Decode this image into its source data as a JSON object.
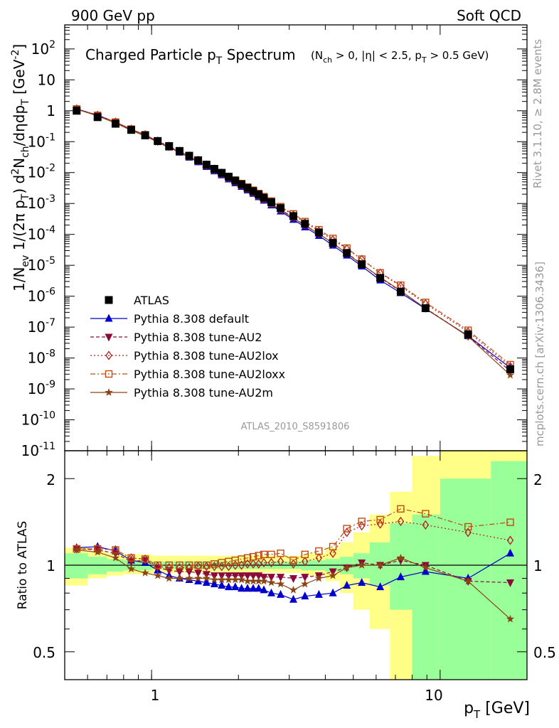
{
  "header": {
    "left": "900 GeV pp",
    "right": "Soft QCD"
  },
  "plot_title": {
    "main": "Charged Particle p",
    "main_sub": "T",
    "main_tail": " Spectrum",
    "cuts": "(N",
    "cuts_sub1": "ch",
    "cuts_mid": " > 0, |η| < 2.5, p",
    "cuts_sub2": "T",
    "cuts_tail": " > 0.5 GeV)"
  },
  "side_text": {
    "rivet": "Rivet 3.1.10, ≥ 2.8M events",
    "mcplots": "mcplots.cern.ch [arXiv:1306.3436]"
  },
  "analysis_id": "ATLAS_2010_S8591806",
  "ylabel_main": "1/N",
  "ylabel_ratio": "Ratio to ATLAS",
  "xlabel": "p",
  "xlabel_sub": "T",
  "xlabel_unit": " [GeV]",
  "legend": [
    "ATLAS",
    "Pythia 8.308 default",
    "Pythia 8.308 tune-AU2",
    "Pythia 8.308 tune-AU2lox",
    "Pythia 8.308 tune-AU2loxx",
    "Pythia 8.308 tune-AU2m"
  ],
  "colors": {
    "data": "#000000",
    "default": "#0000cc",
    "au2": "#8b0a3c",
    "au2lox": "#b02020",
    "au2loxx": "#c04a10",
    "au2m": "#8b4513",
    "band_inner": "#99ff99",
    "band_outer": "#ffff88",
    "annotation": "#999999"
  },
  "chart_data": [
    {
      "type": "line",
      "panel": "main",
      "xscale": "log",
      "yscale": "log",
      "xlim": [
        0.5,
        20
      ],
      "ylim": [
        1e-11,
        600
      ],
      "x": [
        0.55,
        0.65,
        0.75,
        0.85,
        0.95,
        1.05,
        1.15,
        1.25,
        1.35,
        1.45,
        1.55,
        1.65,
        1.75,
        1.85,
        1.95,
        2.05,
        2.15,
        2.25,
        2.35,
        2.45,
        2.6,
        2.8,
        3.1,
        3.4,
        3.8,
        4.25,
        4.75,
        5.35,
        6.2,
        7.3,
        8.9,
        12.5,
        17.5
      ],
      "series": [
        {
          "name": "ATLAS",
          "style": "square",
          "values": [
            1.0,
            0.62,
            0.38,
            0.24,
            0.16,
            0.105,
            0.072,
            0.05,
            0.035,
            0.025,
            0.018,
            0.0132,
            0.0098,
            0.0073,
            0.0055,
            0.0042,
            0.0032,
            0.0025,
            0.00195,
            0.00153,
            0.0011,
            0.00071,
            0.00039,
            0.00022,
            0.000115,
            5.3e-05,
            2.5e-05,
            1.08e-05,
            3.9e-06,
            1.4e-06,
            4.1e-07,
            5.8e-08,
            4.3e-09
          ]
        },
        {
          "name": "Pythia 8.308 default",
          "style": "triangle-up",
          "values": [
            1.15,
            0.72,
            0.43,
            0.25,
            0.165,
            0.1,
            0.066,
            0.045,
            0.031,
            0.022,
            0.0155,
            0.0112,
            0.0083,
            0.0061,
            0.0046,
            0.0035,
            0.0027,
            0.0021,
            0.00163,
            0.00126,
            0.00088,
            0.00056,
            0.0003,
            0.000172,
            9.1e-05,
            4.4e-05,
            2.1e-05,
            9.3e-06,
            3.3e-06,
            1.28e-06,
            3.9e-07,
            5.2e-08,
            4.8e-09
          ]
        },
        {
          "name": "Pythia 8.308 tune-AU2",
          "style": "triangle-down",
          "values": [
            1.14,
            0.7,
            0.42,
            0.248,
            0.166,
            0.103,
            0.069,
            0.048,
            0.033,
            0.0235,
            0.0166,
            0.0121,
            0.009,
            0.0067,
            0.0051,
            0.0038,
            0.0029,
            0.00228,
            0.00177,
            0.00138,
            0.00097,
            0.00063,
            0.00035,
            0.000198,
            0.000106,
            5.1e-05,
            2.5e-05,
            1.1e-05,
            3.9e-06,
            1.45e-06,
            4.1e-07,
            5.1e-08,
            3.8e-09
          ]
        },
        {
          "name": "Pythia 8.308 tune-AU2lox",
          "style": "diamond",
          "values": [
            1.14,
            0.71,
            0.43,
            0.255,
            0.168,
            0.104,
            0.071,
            0.049,
            0.0345,
            0.0247,
            0.0176,
            0.0129,
            0.0096,
            0.0072,
            0.0055,
            0.0042,
            0.0032,
            0.00253,
            0.00197,
            0.00155,
            0.00111,
            0.00073,
            0.00042,
            0.00024,
            0.000129,
            6.6e-05,
            3.4e-05,
            1.55e-05,
            5.6e-06,
            2.1e-06,
            5.7e-07,
            7e-08,
            5.3e-09
          ]
        },
        {
          "name": "Pythia 8.308 tune-AU2loxx",
          "style": "square-open",
          "values": [
            1.14,
            0.71,
            0.43,
            0.255,
            0.168,
            0.105,
            0.072,
            0.05,
            0.035,
            0.025,
            0.018,
            0.0133,
            0.0099,
            0.0075,
            0.0057,
            0.0044,
            0.0034,
            0.00268,
            0.0021,
            0.00166,
            0.0012,
            0.00079,
            0.00046,
            0.00026,
            0.000142,
            7.4e-05,
            3.6e-05,
            1.58e-05,
            5.7e-06,
            2.27e-06,
            6.3e-07,
            7.9e-08,
            6.1e-09
          ]
        },
        {
          "name": "Pythia 8.308 tune-AU2m",
          "style": "star",
          "values": [
            1.13,
            0.68,
            0.4,
            0.232,
            0.152,
            0.096,
            0.064,
            0.045,
            0.0315,
            0.0225,
            0.016,
            0.0117,
            0.0087,
            0.0065,
            0.0049,
            0.0037,
            0.0028,
            0.00219,
            0.00168,
            0.00131,
            0.00093,
            0.0006,
            0.00034,
            0.000194,
            0.000104,
            5.2e-05,
            2.4e-05,
            1.07e-05,
            4.1e-06,
            1.5e-06,
            4e-07,
            5e-08,
            2.8e-09
          ]
        }
      ]
    },
    {
      "type": "line",
      "panel": "ratio",
      "xscale": "log",
      "yscale": "log",
      "xlim": [
        0.5,
        20
      ],
      "ylim": [
        0.4,
        2.5
      ],
      "ylabel": "Ratio to ATLAS",
      "reference_line": 1,
      "x": [
        0.55,
        0.65,
        0.75,
        0.85,
        0.95,
        1.05,
        1.15,
        1.25,
        1.35,
        1.45,
        1.55,
        1.65,
        1.75,
        1.85,
        1.95,
        2.05,
        2.15,
        2.25,
        2.35,
        2.45,
        2.6,
        2.8,
        3.1,
        3.4,
        3.8,
        4.25,
        4.75,
        5.35,
        6.2,
        7.3,
        8.9,
        12.5,
        17.5
      ],
      "series": [
        {
          "name": "Pythia 8.308 default",
          "values": [
            1.15,
            1.16,
            1.12,
            1.04,
            1.02,
            0.96,
            0.92,
            0.9,
            0.89,
            0.88,
            0.87,
            0.86,
            0.85,
            0.84,
            0.84,
            0.83,
            0.83,
            0.83,
            0.83,
            0.82,
            0.8,
            0.79,
            0.76,
            0.78,
            0.79,
            0.8,
            0.85,
            0.87,
            0.84,
            0.91,
            0.95,
            0.9,
            1.1
          ]
        },
        {
          "name": "Pythia 8.308 tune-AU2",
          "values": [
            1.14,
            1.13,
            1.1,
            1.03,
            1.04,
            0.98,
            0.96,
            0.95,
            0.95,
            0.94,
            0.93,
            0.92,
            0.92,
            0.92,
            0.92,
            0.92,
            0.92,
            0.92,
            0.92,
            0.91,
            0.91,
            0.91,
            0.9,
            0.91,
            0.92,
            0.95,
            0.98,
            1.02,
            1.0,
            1.04,
            1.0,
            0.88,
            0.87
          ]
        },
        {
          "name": "Pythia 8.308 tune-AU2lox",
          "values": [
            1.14,
            1.14,
            1.13,
            1.06,
            1.05,
            0.99,
            0.98,
            0.98,
            0.98,
            0.99,
            0.99,
            0.99,
            0.99,
            0.99,
            1.0,
            1.0,
            1.01,
            1.01,
            1.01,
            1.02,
            1.02,
            1.03,
            1.01,
            1.03,
            1.06,
            1.1,
            1.3,
            1.37,
            1.39,
            1.42,
            1.38,
            1.3,
            1.22
          ]
        },
        {
          "name": "Pythia 8.308 tune-AU2loxx",
          "values": [
            1.14,
            1.14,
            1.13,
            1.06,
            1.05,
            1.0,
            1.0,
            1.0,
            1.0,
            1.0,
            1.0,
            1.01,
            1.02,
            1.03,
            1.04,
            1.05,
            1.06,
            1.07,
            1.08,
            1.09,
            1.09,
            1.1,
            1.04,
            1.09,
            1.12,
            1.16,
            1.34,
            1.42,
            1.44,
            1.57,
            1.51,
            1.36,
            1.41
          ]
        },
        {
          "name": "Pythia 8.308 tune-AU2m",
          "values": [
            1.13,
            1.11,
            1.06,
            0.97,
            0.94,
            0.92,
            0.9,
            0.9,
            0.9,
            0.9,
            0.9,
            0.89,
            0.89,
            0.89,
            0.89,
            0.89,
            0.88,
            0.88,
            0.88,
            0.88,
            0.87,
            0.86,
            0.82,
            0.86,
            0.9,
            0.92,
            0.98,
            1.0,
            1.0,
            1.06,
            0.98,
            0.88,
            0.65
          ]
        }
      ],
      "bands": {
        "edges": [
          0.5,
          0.6,
          0.7,
          0.8,
          0.9,
          1.0,
          1.1,
          1.2,
          1.3,
          1.4,
          1.5,
          1.6,
          1.7,
          1.8,
          1.9,
          2.0,
          2.1,
          2.2,
          2.3,
          2.4,
          2.5,
          2.7,
          2.9,
          3.3,
          3.5,
          4.0,
          4.5,
          5.0,
          5.7,
          6.7,
          8.0,
          10.0,
          15.0,
          20.0
        ],
        "inner": [
          [
            0.9,
            1.1
          ],
          [
            0.93,
            1.07
          ],
          [
            0.95,
            1.05
          ],
          [
            0.96,
            1.04
          ],
          [
            0.96,
            1.04
          ],
          [
            0.97,
            1.03
          ],
          [
            0.97,
            1.03
          ],
          [
            0.97,
            1.03
          ],
          [
            0.97,
            1.03
          ],
          [
            0.97,
            1.03
          ],
          [
            0.97,
            1.03
          ],
          [
            0.97,
            1.03
          ],
          [
            0.97,
            1.03
          ],
          [
            0.97,
            1.03
          ],
          [
            0.97,
            1.03
          ],
          [
            0.97,
            1.03
          ],
          [
            0.97,
            1.03
          ],
          [
            0.97,
            1.03
          ],
          [
            0.97,
            1.03
          ],
          [
            0.97,
            1.03
          ],
          [
            0.97,
            1.03
          ],
          [
            0.97,
            1.03
          ],
          [
            0.97,
            1.03
          ],
          [
            0.96,
            1.04
          ],
          [
            0.96,
            1.04
          ],
          [
            0.95,
            1.05
          ],
          [
            0.93,
            1.07
          ],
          [
            0.9,
            1.1
          ],
          [
            0.85,
            1.2
          ],
          [
            0.7,
            1.4
          ],
          [
            0.4,
            1.5
          ],
          [
            0.4,
            2.0
          ],
          [
            0.4,
            2.3
          ]
        ],
        "outer": [
          [
            0.85,
            1.15
          ],
          [
            0.9,
            1.12
          ],
          [
            0.92,
            1.1
          ],
          [
            0.93,
            1.09
          ],
          [
            0.93,
            1.09
          ],
          [
            0.94,
            1.08
          ],
          [
            0.94,
            1.08
          ],
          [
            0.94,
            1.08
          ],
          [
            0.94,
            1.08
          ],
          [
            0.94,
            1.08
          ],
          [
            0.94,
            1.08
          ],
          [
            0.94,
            1.08
          ],
          [
            0.94,
            1.08
          ],
          [
            0.94,
            1.08
          ],
          [
            0.94,
            1.08
          ],
          [
            0.94,
            1.08
          ],
          [
            0.94,
            1.08
          ],
          [
            0.94,
            1.08
          ],
          [
            0.94,
            1.08
          ],
          [
            0.94,
            1.08
          ],
          [
            0.94,
            1.08
          ],
          [
            0.94,
            1.08
          ],
          [
            0.94,
            1.08
          ],
          [
            0.93,
            1.09
          ],
          [
            0.92,
            1.1
          ],
          [
            0.88,
            1.15
          ],
          [
            0.8,
            1.2
          ],
          [
            0.7,
            1.3
          ],
          [
            0.6,
            1.5
          ],
          [
            0.4,
            1.8
          ],
          [
            0.4,
            2.4
          ],
          [
            0.4,
            2.5
          ],
          [
            0.4,
            2.5
          ]
        ]
      }
    }
  ]
}
